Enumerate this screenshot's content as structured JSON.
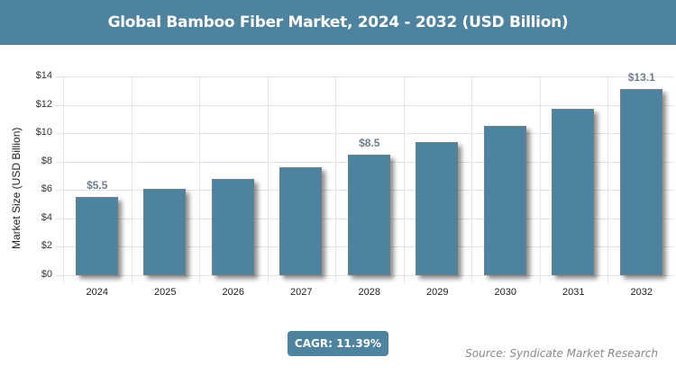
{
  "header": {
    "title": "Global Bamboo Fiber Market, 2024 - 2032 (USD Billion)"
  },
  "footer": {
    "cagr": "CAGR: 11.39%",
    "source": "Source: Syndicate Market Research"
  },
  "colors": {
    "bar": "#4e839f",
    "header": "#4e839f"
  },
  "chart_data": {
    "type": "bar",
    "title": "Global Bamboo Fiber Market, 2024 - 2032 (USD Billion)",
    "xlabel": "",
    "ylabel": "Market Size (USD Billion)",
    "categories": [
      "2024",
      "2025",
      "2026",
      "2027",
      "2028",
      "2029",
      "2030",
      "2031",
      "2032"
    ],
    "values": [
      5.5,
      6.1,
      6.8,
      7.6,
      8.5,
      9.4,
      10.5,
      11.7,
      13.1
    ],
    "data_labels": {
      "0": "$5.5",
      "4": "$8.5",
      "8": "$13.1"
    },
    "yticks": [
      "$0",
      "$2",
      "$4",
      "$6",
      "$8",
      "$10",
      "$12",
      "$14"
    ],
    "ylim": [
      0,
      14
    ],
    "grid": true,
    "legend": null
  }
}
